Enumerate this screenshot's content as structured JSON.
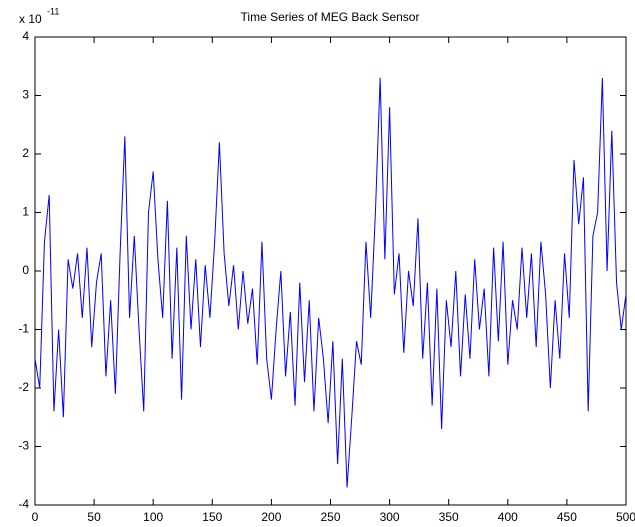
{
  "chart_data": {
    "type": "line",
    "title": "Time Series of MEG Back Sensor",
    "exponent_label": {
      "base": "x 10",
      "power": "-11"
    },
    "x": [
      0,
      4,
      8,
      12,
      16,
      20,
      24,
      28,
      32,
      36,
      40,
      44,
      48,
      52,
      56,
      60,
      64,
      68,
      72,
      76,
      80,
      84,
      88,
      92,
      96,
      100,
      104,
      108,
      112,
      116,
      120,
      124,
      128,
      132,
      136,
      140,
      144,
      148,
      152,
      156,
      160,
      164,
      168,
      172,
      176,
      180,
      184,
      188,
      192,
      196,
      200,
      204,
      208,
      212,
      216,
      220,
      224,
      228,
      232,
      236,
      240,
      244,
      248,
      252,
      256,
      260,
      264,
      268,
      272,
      276,
      280,
      284,
      288,
      292,
      296,
      300,
      304,
      308,
      312,
      316,
      320,
      324,
      328,
      332,
      336,
      340,
      344,
      348,
      352,
      356,
      360,
      364,
      368,
      372,
      376,
      380,
      384,
      388,
      392,
      396,
      400,
      404,
      408,
      412,
      416,
      420,
      424,
      428,
      432,
      436,
      440,
      444,
      448,
      452,
      456,
      460,
      464,
      468,
      472,
      476,
      480,
      484,
      488,
      492,
      496,
      500
    ],
    "series": [
      {
        "color": "#0000ff",
        "values": [
          -1.5,
          -2.0,
          0.5,
          1.3,
          -2.4,
          -1.0,
          -2.5,
          0.2,
          -0.3,
          0.3,
          -0.8,
          0.4,
          -1.3,
          -0.2,
          0.3,
          -1.8,
          -0.5,
          -2.1,
          0.3,
          2.3,
          -0.8,
          0.6,
          -1.0,
          -2.4,
          1.0,
          1.7,
          0.2,
          -0.8,
          1.2,
          -1.5,
          0.4,
          -2.2,
          0.6,
          -1.0,
          0.2,
          -1.3,
          0.1,
          -0.8,
          0.5,
          2.2,
          0.3,
          -0.6,
          0.1,
          -1.0,
          0.0,
          -0.9,
          -0.3,
          -1.6,
          0.5,
          -1.5,
          -2.2,
          -1.0,
          0.0,
          -1.8,
          -0.7,
          -2.3,
          -0.2,
          -1.9,
          -0.5,
          -2.4,
          -0.8,
          -1.5,
          -2.6,
          -1.2,
          -3.3,
          -1.5,
          -3.7,
          -2.5,
          -1.2,
          -1.6,
          0.5,
          -0.8,
          1.0,
          3.3,
          0.2,
          2.8,
          -0.4,
          0.3,
          -1.4,
          0.0,
          -0.6,
          0.9,
          -1.5,
          -0.2,
          -2.3,
          -0.3,
          -2.7,
          -0.5,
          -1.3,
          0.0,
          -1.8,
          -0.4,
          -1.5,
          0.2,
          -1.0,
          -0.3,
          -1.8,
          0.4,
          -1.2,
          0.5,
          -1.6,
          -0.5,
          -1.0,
          0.4,
          -0.8,
          0.3,
          -1.3,
          0.5,
          -0.4,
          -2.0,
          -0.5,
          -1.5,
          0.3,
          -0.8,
          1.9,
          0.8,
          1.6,
          -2.4,
          0.6,
          1.0,
          3.3,
          0.0,
          2.4,
          -0.2,
          -1.0,
          -0.4
        ]
      }
    ],
    "xlim": [
      0,
      500
    ],
    "ylim": [
      -4,
      4
    ],
    "xticks": [
      0,
      50,
      100,
      150,
      200,
      250,
      300,
      350,
      400,
      450,
      500
    ],
    "yticks": [
      -4,
      -3,
      -2,
      -1,
      0,
      1,
      2,
      3,
      4
    ]
  }
}
